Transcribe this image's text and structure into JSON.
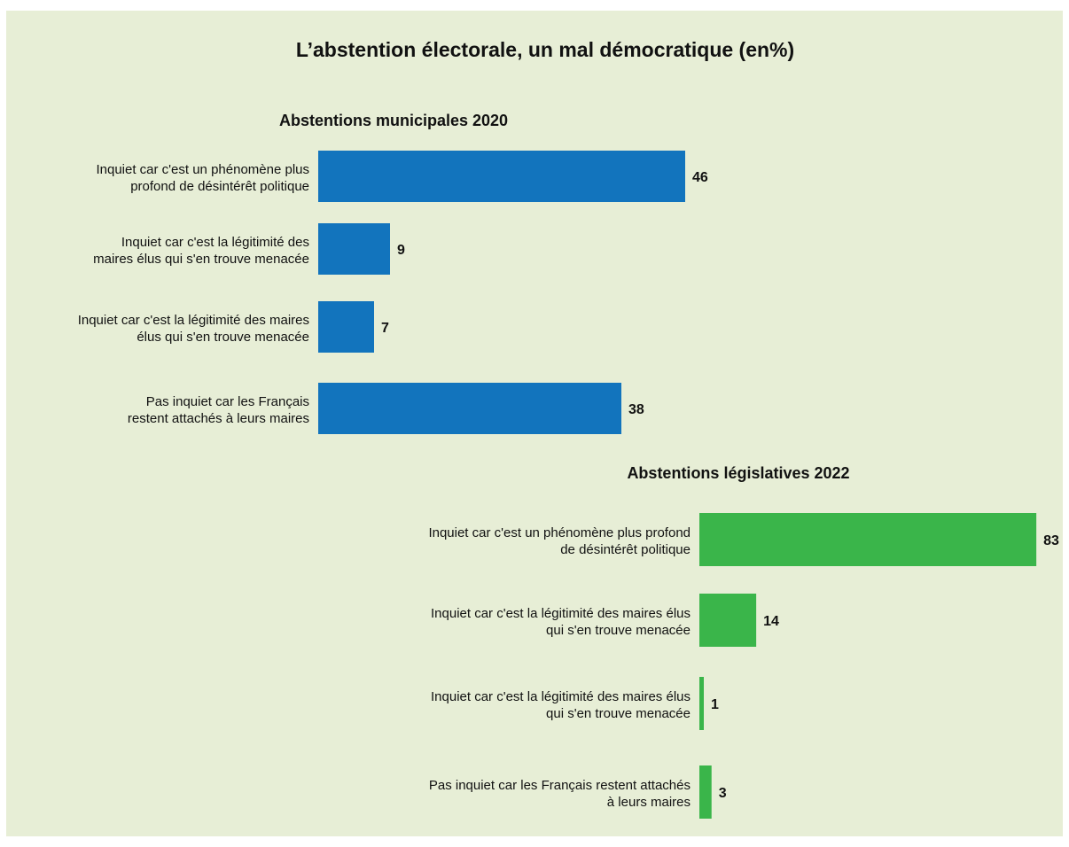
{
  "chart_data": [
    {
      "type": "bar",
      "orientation": "horizontal",
      "title": "L’abstention électorale, un mal démocratique (en%)",
      "subtitle": "Abstentions municipales 2020",
      "categories": [
        [
          "Inquiet car c'est un phénomène plus",
          "profond de désintérêt politique"
        ],
        [
          "Inquiet car c'est la légitimité des",
          "maires élus qui s'en trouve menacée"
        ],
        [
          "Inquiet car c'est la légitimité des maires",
          "élus qui s'en trouve menacée"
        ],
        [
          "Pas inquiet car les Français",
          "restent attachés à leurs maires"
        ]
      ],
      "values": [
        46,
        9,
        7,
        38
      ],
      "value_labels": [
        "46",
        "9",
        "7",
        "38"
      ],
      "color": "#1274bd"
    },
    {
      "type": "bar",
      "orientation": "horizontal",
      "subtitle": "Abstentions législatives 2022",
      "categories": [
        [
          "Inquiet car c'est un phénomène plus profond",
          "de désintérêt politique"
        ],
        [
          "Inquiet car c'est la légitimité des maires élus",
          "qui s'en trouve menacée"
        ],
        [
          "Inquiet car c'est la légitimité des maires élus",
          "qui s'en trouve menacée"
        ],
        [
          "Pas inquiet car les Français restent attachés",
          "à leurs maires"
        ]
      ],
      "values": [
        83,
        14,
        1,
        3
      ],
      "value_labels": [
        "83",
        "14",
        "1",
        "3"
      ],
      "color": "#3ab54a"
    }
  ],
  "colors": {
    "background": "#e7eed6",
    "municipales": "#1274bd",
    "legislatives": "#3ab54a"
  }
}
